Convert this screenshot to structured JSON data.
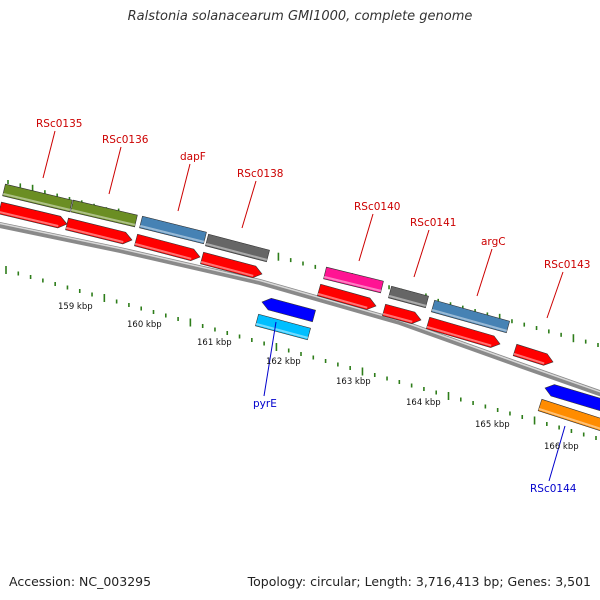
{
  "title": "Ralstonia solanacearum GMI1000, complete genome",
  "footer": {
    "accession": "Accession: NC_003295",
    "summary": "Topology: circular; Length: 3,716,413 bp; Genes: 3,501"
  },
  "colors": {
    "backbone": "#8a8a8a",
    "tick": "#2e7d1a",
    "label_red": "#cc0000",
    "label_blue": "#0000cc",
    "olive": "#6b8e23",
    "red": "#ff0000",
    "steelblue": "#4682b4",
    "gray": "#666666",
    "magenta": "#ff1493",
    "blue": "#0000ff",
    "cyan": "#00bfff",
    "orange": "#ff8c00"
  },
  "scale_labels": [
    "159 kbp",
    "160 kbp",
    "161 kbp",
    "162 kbp",
    "163 kbp",
    "164 kbp",
    "165 kbp",
    "166 kbp"
  ],
  "gene_labels": [
    {
      "text": "RSc0135",
      "color": "label_red"
    },
    {
      "text": "RSc0136",
      "color": "label_red"
    },
    {
      "text": "dapF",
      "color": "label_red"
    },
    {
      "text": "RSc0138",
      "color": "label_red"
    },
    {
      "text": "RSc0140",
      "color": "label_red"
    },
    {
      "text": "RSc0141",
      "color": "label_red"
    },
    {
      "text": "argC",
      "color": "label_red"
    },
    {
      "text": "RSc0143",
      "color": "label_red"
    },
    {
      "text": "pyrE",
      "color": "label_blue"
    },
    {
      "text": "RSc0144",
      "color": "label_blue"
    }
  ]
}
